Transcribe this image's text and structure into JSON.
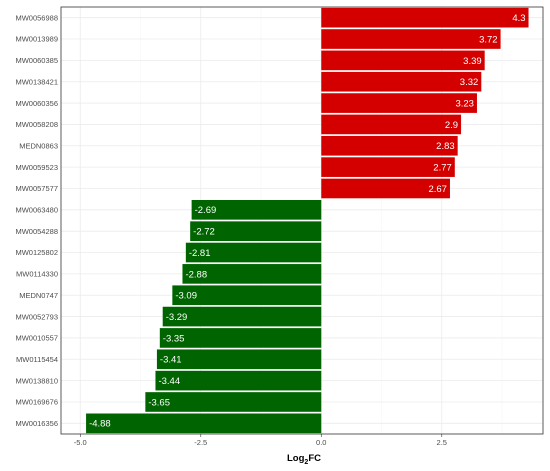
{
  "chart_data": {
    "type": "bar",
    "orientation": "horizontal",
    "categories": [
      "MW0056988",
      "MW0013989",
      "MW0060385",
      "MW0138421",
      "MW0060356",
      "MW0058208",
      "MEDN0863",
      "MW0059523",
      "MW0057577",
      "MW0063480",
      "MW0054288",
      "MW0125802",
      "MW0114330",
      "MEDN0747",
      "MW0052793",
      "MW0010557",
      "MW0115454",
      "MW0138810",
      "MW0169676",
      "MW0016356"
    ],
    "values": [
      4.3,
      3.72,
      3.39,
      3.32,
      3.23,
      2.9,
      2.83,
      2.77,
      2.67,
      -2.69,
      -2.72,
      -2.81,
      -2.88,
      -3.09,
      -3.29,
      -3.35,
      -3.41,
      -3.44,
      -3.65,
      -4.88
    ],
    "value_labels": [
      "4.3",
      "3.72",
      "3.39",
      "3.32",
      "3.23",
      "2.9",
      "2.83",
      "2.77",
      "2.67",
      "-2.69",
      "-2.72",
      "-2.81",
      "-2.88",
      "-3.09",
      "-3.29",
      "-3.35",
      "-3.41",
      "-3.44",
      "-3.65",
      "-4.88"
    ],
    "xlabel_main": "Log",
    "xlabel_sub": "2",
    "xlabel_tail": "FC",
    "ylabel": "",
    "xlim": [
      -5.4,
      4.6
    ],
    "xticks": [
      -5.0,
      -2.5,
      0.0,
      2.5
    ],
    "xtick_labels": [
      "-5.0",
      "-2.5",
      "0.0",
      "2.5"
    ],
    "grid": true,
    "colors": {
      "positive": "#d40000",
      "negative": "#006400",
      "panel_border": "#333333",
      "grid": "#ebebeb"
    }
  }
}
